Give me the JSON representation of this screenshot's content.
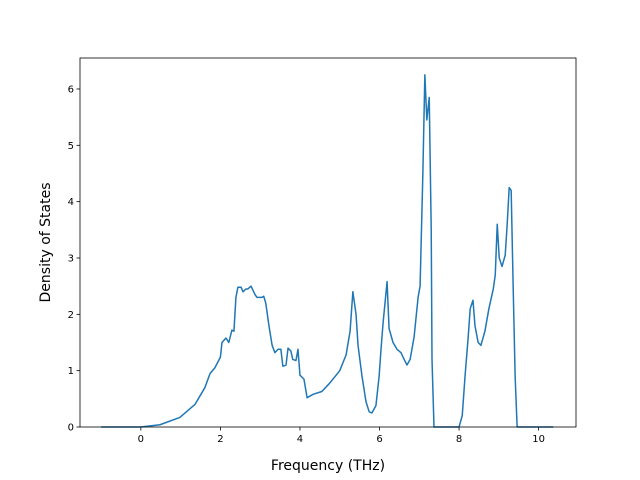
{
  "chart_data": {
    "type": "line",
    "x_label": "Frequency (THz)",
    "y_label": "Density of States",
    "x": [
      -1,
      0,
      0.48,
      0.98,
      1.36,
      1.61,
      1.74,
      1.86,
      2.0,
      2.04,
      2.14,
      2.21,
      2.29,
      2.34,
      2.39,
      2.44,
      2.52,
      2.57,
      2.64,
      2.69,
      2.77,
      2.87,
      2.92,
      3.04,
      3.09,
      3.14,
      3.22,
      3.3,
      3.37,
      3.45,
      3.52,
      3.57,
      3.65,
      3.7,
      3.77,
      3.82,
      3.9,
      3.95,
      4.0,
      4.1,
      4.18,
      4.33,
      4.55,
      4.75,
      5.0,
      5.16,
      5.26,
      5.33,
      5.41,
      5.46,
      5.56,
      5.66,
      5.74,
      5.81,
      5.91,
      5.99,
      6.04,
      6.09,
      6.19,
      6.24,
      6.34,
      6.44,
      6.54,
      6.62,
      6.69,
      6.77,
      6.87,
      6.97,
      7.02,
      7.09,
      7.14,
      7.19,
      7.25,
      7.3,
      7.32,
      7.37,
      8.0,
      8.08,
      8.15,
      8.23,
      8.28,
      8.35,
      8.4,
      8.48,
      8.55,
      8.65,
      8.75,
      8.86,
      8.91,
      8.96,
      9.01,
      9.08,
      9.16,
      9.21,
      9.26,
      9.31,
      9.36,
      9.41,
      9.46,
      10.37
    ],
    "series": [
      {
        "name": "DOS",
        "color": "#1f77b4",
        "values": [
          0,
          0,
          0.04,
          0.17,
          0.4,
          0.7,
          0.95,
          1.05,
          1.24,
          1.5,
          1.58,
          1.5,
          1.72,
          1.7,
          2.3,
          2.48,
          2.48,
          2.4,
          2.45,
          2.45,
          2.5,
          2.35,
          2.3,
          2.3,
          2.32,
          2.2,
          1.8,
          1.45,
          1.32,
          1.38,
          1.38,
          1.08,
          1.1,
          1.4,
          1.35,
          1.2,
          1.18,
          1.38,
          0.92,
          0.85,
          0.52,
          0.58,
          0.63,
          0.78,
          1.0,
          1.28,
          1.7,
          2.4,
          2.0,
          1.45,
          0.9,
          0.45,
          0.27,
          0.25,
          0.38,
          0.9,
          1.4,
          1.85,
          2.58,
          1.75,
          1.5,
          1.38,
          1.32,
          1.2,
          1.1,
          1.2,
          1.6,
          2.3,
          2.5,
          4.5,
          6.25,
          5.45,
          5.85,
          3.5,
          1.2,
          0,
          0,
          0.2,
          0.9,
          1.6,
          2.1,
          2.25,
          1.8,
          1.5,
          1.45,
          1.7,
          2.1,
          2.45,
          2.7,
          3.6,
          3.0,
          2.85,
          3.05,
          3.6,
          4.25,
          4.2,
          2.5,
          0.9,
          0,
          0
        ]
      }
    ],
    "xlim": [
      -1.53,
      10.94
    ],
    "ylim": [
      0,
      6.55
    ],
    "xticks": [
      0,
      2,
      4,
      6,
      8,
      10
    ],
    "yticks": [
      0,
      1,
      2,
      3,
      4,
      5,
      6
    ]
  }
}
